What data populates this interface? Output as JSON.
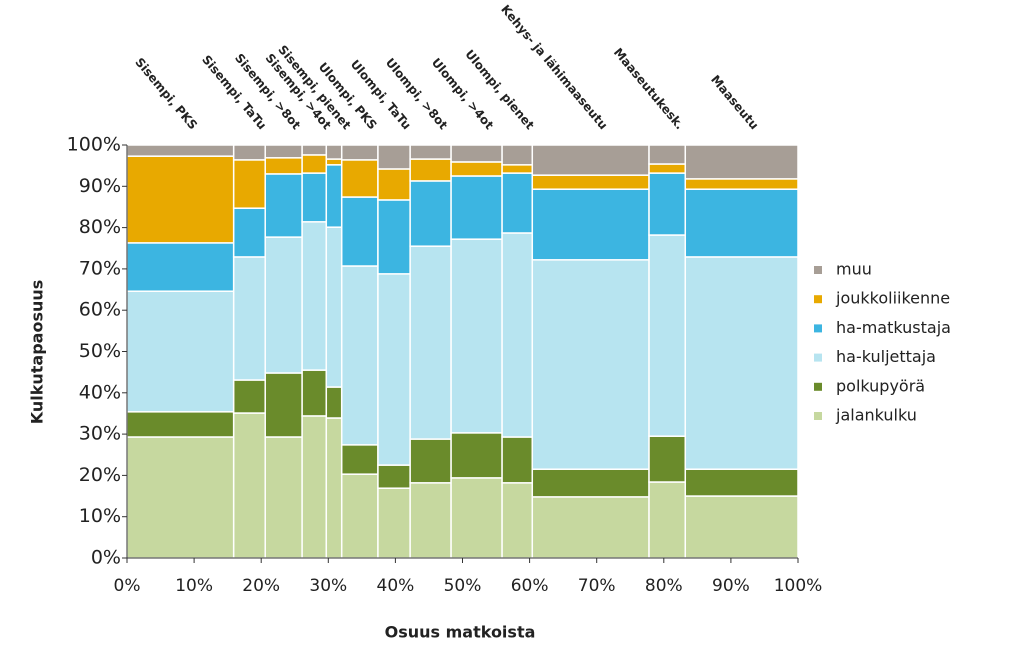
{
  "chart_data": {
    "type": "marimekko",
    "xlabel": "Osuus matkoista",
    "ylabel": "Kulkutapaosuus",
    "categories": [
      "Sisempi, PKS",
      "Sisempi, TaTu",
      "Sisempi, >8ot",
      "Sisempi, >4ot",
      "Sisempi, pienet",
      "Ulompi, PKS",
      "Ulompi, TaTu",
      "Ulompi, >8ot",
      "Ulompi, >4ot",
      "Ulompi, pienet",
      "Kehys- ja lähimaaseutu",
      "Maaseutukesk.",
      "Maaseutu"
    ],
    "widths": [
      15.9,
      4.7,
      5.5,
      3.6,
      2.3,
      5.4,
      4.8,
      6.1,
      7.6,
      4.5,
      17.4,
      5.4,
      16.8
    ],
    "series": [
      {
        "name": "jalankulku",
        "color": "#c6d89f",
        "values": [
          29.3,
          35.1,
          29.3,
          34.4,
          33.9,
          20.3,
          16.9,
          18.2,
          19.4,
          18.2,
          14.8,
          18.4,
          15.0
        ]
      },
      {
        "name": "polkupyörä",
        "color": "#6a8b2b",
        "values": [
          6.1,
          8.0,
          15.5,
          11.1,
          7.5,
          7.1,
          5.6,
          10.6,
          10.9,
          11.1,
          6.7,
          11.1,
          6.5
        ]
      },
      {
        "name": "ha-kuljettaja",
        "color": "#b7e4f0",
        "values": [
          29.2,
          29.8,
          32.9,
          35.9,
          38.7,
          43.3,
          46.3,
          46.7,
          46.9,
          49.4,
          50.7,
          48.7,
          51.4
        ]
      },
      {
        "name": "ha-matkustaja",
        "color": "#3cb5e1",
        "values": [
          11.7,
          11.8,
          15.3,
          11.8,
          15.1,
          16.7,
          17.9,
          15.8,
          15.3,
          14.5,
          17.1,
          15.0,
          16.4
        ]
      },
      {
        "name": "joukkoliikenne",
        "color": "#e8a900",
        "values": [
          21.0,
          11.7,
          3.9,
          4.4,
          1.4,
          9.0,
          7.5,
          5.3,
          3.4,
          2.0,
          3.4,
          2.2,
          2.5
        ]
      },
      {
        "name": "muu",
        "color": "#a79e96",
        "values": [
          2.7,
          3.6,
          3.1,
          2.4,
          3.4,
          3.6,
          5.8,
          3.4,
          4.1,
          4.8,
          7.3,
          4.6,
          8.2
        ]
      }
    ],
    "xlim": [
      0,
      100
    ],
    "xticks": [
      {
        "value": 0,
        "label": "0%"
      },
      {
        "value": 10,
        "label": "10%"
      },
      {
        "value": 20,
        "label": "20%"
      },
      {
        "value": 30,
        "label": "30%"
      },
      {
        "value": 40,
        "label": "40%"
      },
      {
        "value": 50,
        "label": "50%"
      },
      {
        "value": 60,
        "label": "60%"
      },
      {
        "value": 70,
        "label": "70%"
      },
      {
        "value": 80,
        "label": "80%"
      },
      {
        "value": 90,
        "label": "90%"
      },
      {
        "value": 100,
        "label": "100%"
      }
    ],
    "ylim": [
      0,
      100
    ],
    "yticks": [
      {
        "value": 0,
        "label": "0%"
      },
      {
        "value": 10,
        "label": "10%"
      },
      {
        "value": 20,
        "label": "20%"
      },
      {
        "value": 30,
        "label": "30%"
      },
      {
        "value": 40,
        "label": "40%"
      },
      {
        "value": 50,
        "label": "50%"
      },
      {
        "value": 60,
        "label": "60%"
      },
      {
        "value": 70,
        "label": "70%"
      },
      {
        "value": 80,
        "label": "80%"
      },
      {
        "value": 90,
        "label": "90%"
      },
      {
        "value": 100,
        "label": "100%"
      }
    ],
    "legend": "right"
  }
}
